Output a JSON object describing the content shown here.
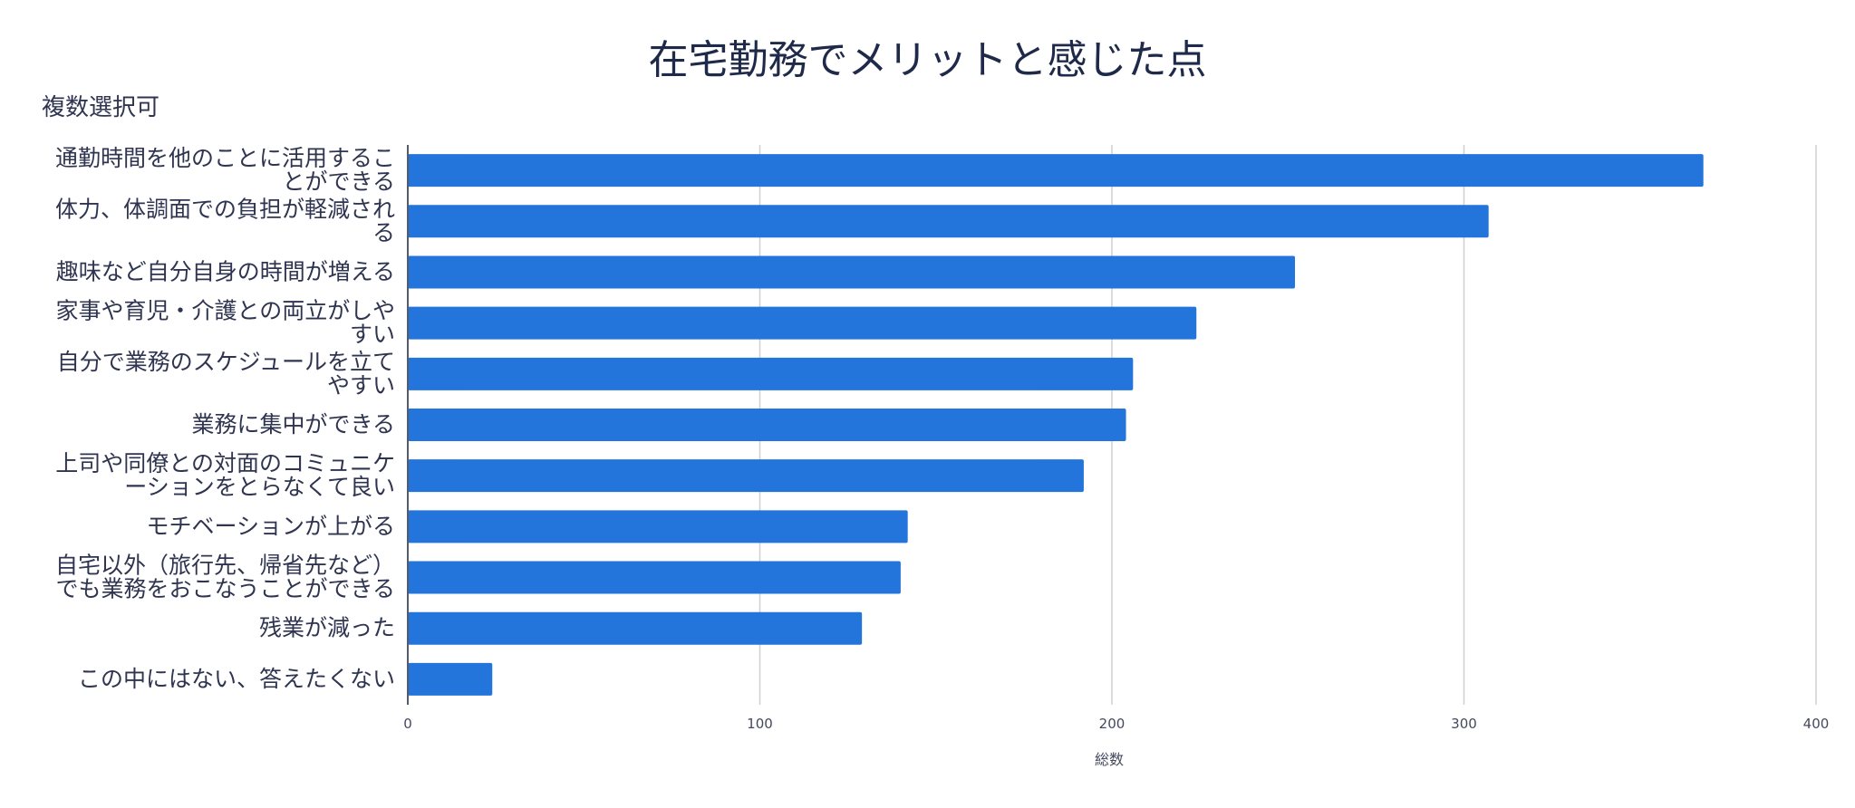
{
  "chart_data": {
    "type": "bar",
    "orientation": "horizontal",
    "title": "在宅勤務でメリットと感じた点",
    "subtitle": "複数選択可",
    "xlabel": "総数",
    "ylabel": "",
    "xlim": [
      0,
      400
    ],
    "x_ticks": [
      0,
      100,
      200,
      300,
      400
    ],
    "grid": true,
    "bar_color": "#2374DB",
    "categories": [
      [
        "通勤時間を他のことに活用するこ",
        "とができる"
      ],
      [
        "体力、体調面での負担が軽減され",
        "る"
      ],
      [
        "趣味など自分自身の時間が増える"
      ],
      [
        "家事や育児・介護との両立がしや",
        "すい"
      ],
      [
        "自分で業務のスケジュールを立て",
        "やすい"
      ],
      [
        "業務に集中ができる"
      ],
      [
        "上司や同僚との対面のコミュニケ",
        "ーションをとらなくて良い"
      ],
      [
        "モチベーションが上がる"
      ],
      [
        "自宅以外（旅行先、帰省先など）",
        "でも業務をおこなうことができる"
      ],
      [
        "残業が減った"
      ],
      [
        "この中にはない、答えたくない"
      ]
    ],
    "values": [
      368,
      307,
      252,
      224,
      206,
      204,
      192,
      142,
      140,
      129,
      24
    ]
  }
}
